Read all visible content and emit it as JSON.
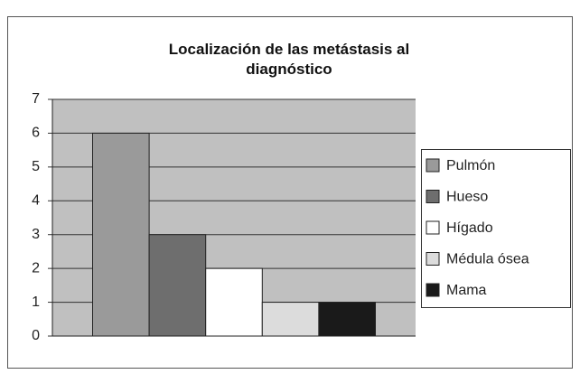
{
  "chart_data": {
    "type": "bar",
    "title": "Localización de las metástasis al diagnóstico",
    "categories": [
      null
    ],
    "series": [
      {
        "name": "Pulmón",
        "color": "#9a9a9a",
        "values": [
          6
        ]
      },
      {
        "name": "Hueso",
        "color": "#6e6e6e",
        "values": [
          3
        ]
      },
      {
        "name": "Hígado",
        "color": "#ffffff",
        "values": [
          2
        ]
      },
      {
        "name": "Médula ósea",
        "color": "#dcdcdc",
        "values": [
          1
        ]
      },
      {
        "name": "Mama",
        "color": "#1a1a1a",
        "values": [
          1
        ]
      }
    ],
    "ylim": [
      0,
      7
    ],
    "yticks": [
      0,
      1,
      2,
      3,
      4,
      5,
      6,
      7
    ],
    "grid": true,
    "plot_background": "#c0c0c0",
    "legend": "right"
  }
}
